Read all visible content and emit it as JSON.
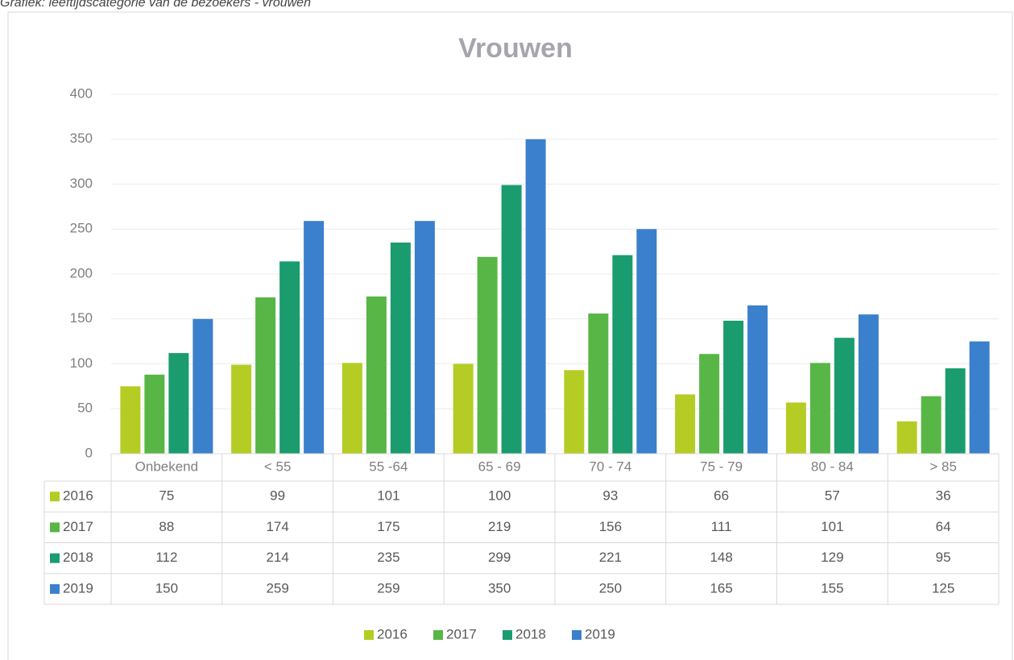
{
  "caption": "Grafiek: leeftijdscategorie van de bezoekers - vrouwen",
  "chart_data": {
    "type": "bar",
    "title": "Vrouwen",
    "categories": [
      "Onbekend",
      "< 55",
      "55 -64",
      "65 - 69",
      "70 - 74",
      "75 - 79",
      "80 - 84",
      "> 85"
    ],
    "series": [
      {
        "name": "2016",
        "color": "#b5cc24",
        "values": [
          75,
          99,
          101,
          100,
          93,
          66,
          57,
          36
        ]
      },
      {
        "name": "2017",
        "color": "#58b646",
        "values": [
          88,
          174,
          175,
          219,
          156,
          111,
          101,
          64
        ]
      },
      {
        "name": "2018",
        "color": "#1a9c6e",
        "values": [
          112,
          214,
          235,
          299,
          221,
          148,
          129,
          95
        ]
      },
      {
        "name": "2019",
        "color": "#3a80cc",
        "values": [
          150,
          259,
          259,
          350,
          250,
          165,
          155,
          125
        ]
      }
    ],
    "ylim": [
      0,
      400
    ],
    "yticks": [
      0,
      50,
      100,
      150,
      200,
      250,
      300,
      350,
      400
    ],
    "grid": true,
    "data_table": true,
    "legend": "bottom"
  }
}
